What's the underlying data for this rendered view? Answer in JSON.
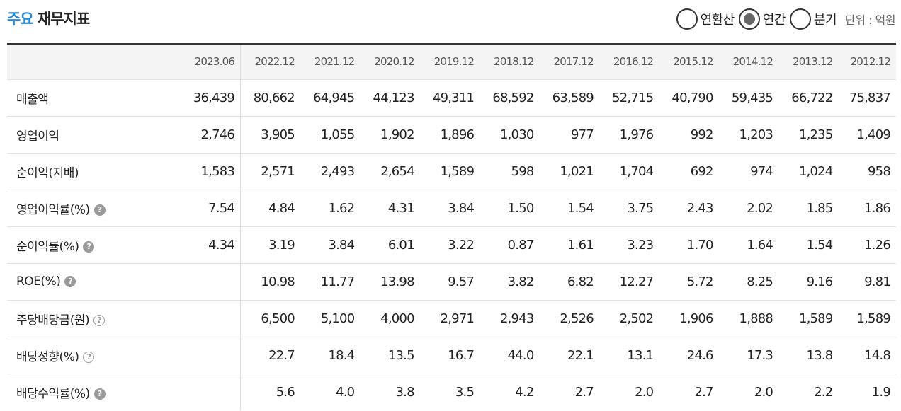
{
  "title": {
    "accent": "주요",
    "rest": "재무지표"
  },
  "period_options": [
    {
      "label": "연환산",
      "checked": false
    },
    {
      "label": "연간",
      "checked": true
    },
    {
      "label": "분기",
      "checked": false
    }
  ],
  "unit": "단위 : 억원",
  "help_glyph": "?",
  "columns": [
    "2023.06",
    "2022.12",
    "2021.12",
    "2020.12",
    "2019.12",
    "2018.12",
    "2017.12",
    "2016.12",
    "2015.12",
    "2014.12",
    "2013.12",
    "2012.12"
  ],
  "rows": [
    {
      "label": "매출액",
      "help": "none",
      "values": [
        "36,439",
        "80,662",
        "64,945",
        "44,123",
        "49,311",
        "68,592",
        "63,589",
        "52,715",
        "40,790",
        "59,435",
        "66,722",
        "75,837"
      ]
    },
    {
      "label": "영업이익",
      "help": "none",
      "values": [
        "2,746",
        "3,905",
        "1,055",
        "1,902",
        "1,896",
        "1,030",
        "977",
        "1,976",
        "992",
        "1,203",
        "1,235",
        "1,409"
      ]
    },
    {
      "label": "순이익(지배)",
      "help": "none",
      "values": [
        "1,583",
        "2,571",
        "2,493",
        "2,654",
        "1,589",
        "598",
        "1,021",
        "1,704",
        "692",
        "974",
        "1,024",
        "958"
      ]
    },
    {
      "label": "영업이익률(%)",
      "help": "filled",
      "values": [
        "7.54",
        "4.84",
        "1.62",
        "4.31",
        "3.84",
        "1.50",
        "1.54",
        "3.75",
        "2.43",
        "2.02",
        "1.85",
        "1.86"
      ]
    },
    {
      "label": "순이익률(%)",
      "help": "filled",
      "values": [
        "4.34",
        "3.19",
        "3.84",
        "6.01",
        "3.22",
        "0.87",
        "1.61",
        "3.23",
        "1.70",
        "1.64",
        "1.54",
        "1.26"
      ]
    },
    {
      "label": "ROE(%)",
      "help": "filled",
      "values": [
        "",
        "10.98",
        "11.77",
        "13.98",
        "9.57",
        "3.82",
        "6.82",
        "12.27",
        "5.72",
        "8.25",
        "9.16",
        "9.81"
      ]
    },
    {
      "label": "주당배당금(원)",
      "help": "outline",
      "values": [
        "",
        "6,500",
        "5,100",
        "4,000",
        "2,971",
        "2,943",
        "2,526",
        "2,502",
        "1,906",
        "1,888",
        "1,589",
        "1,589"
      ]
    },
    {
      "label": "배당성향(%)",
      "help": "outline",
      "values": [
        "",
        "22.7",
        "18.4",
        "13.5",
        "16.7",
        "44.0",
        "22.1",
        "13.1",
        "24.6",
        "17.3",
        "13.8",
        "14.8"
      ]
    },
    {
      "label": "배당수익률(%)",
      "help": "filled",
      "values": [
        "",
        "5.6",
        "4.0",
        "3.8",
        "3.5",
        "4.2",
        "2.7",
        "2.0",
        "2.7",
        "2.0",
        "2.2",
        "1.9"
      ]
    }
  ]
}
